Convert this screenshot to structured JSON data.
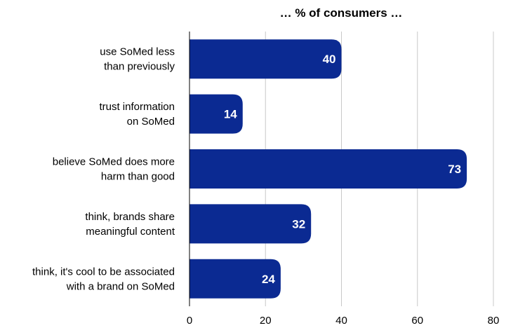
{
  "chart_data": {
    "type": "bar",
    "orientation": "horizontal",
    "title": "… % of consumers …",
    "categories": [
      [
        "use SoMed less",
        "than previously"
      ],
      [
        "trust information",
        "on SoMed"
      ],
      [
        "believe SoMed does more",
        "harm than good"
      ],
      [
        "think, brands share",
        "meaningful content"
      ],
      [
        "think, it's cool to be associated",
        "with a brand on SoMed"
      ]
    ],
    "values": [
      40,
      14,
      73,
      32,
      24
    ],
    "xlim": [
      0,
      80
    ],
    "xticks": [
      0,
      20,
      40,
      60,
      80
    ],
    "xlabel": "",
    "ylabel": "",
    "grid": true,
    "bar_color": "#0b2a92",
    "data_label_color": "#ffffff"
  }
}
